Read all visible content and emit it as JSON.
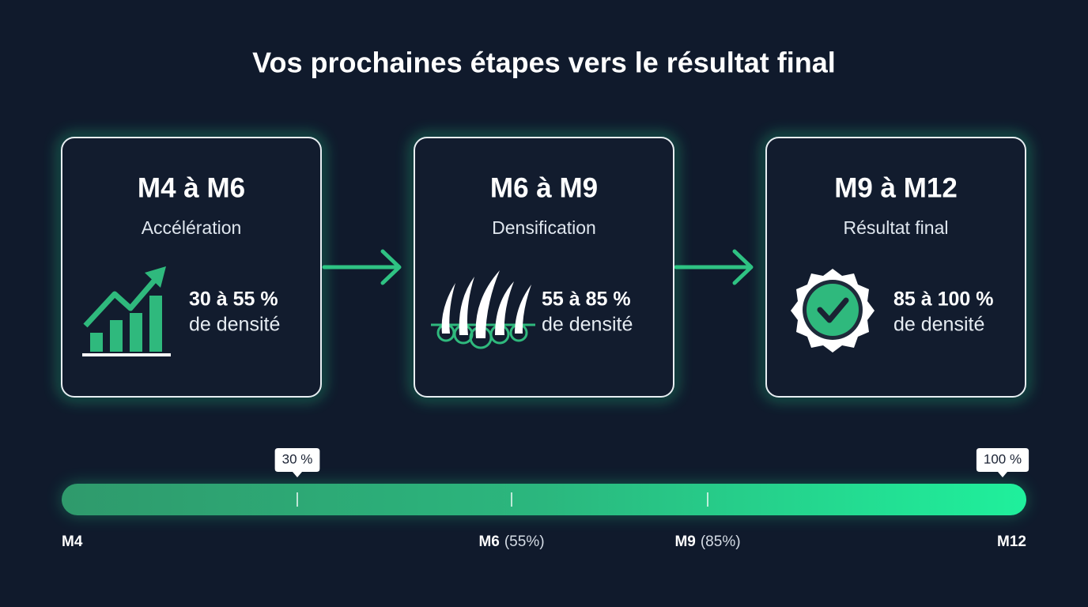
{
  "title": "Vos prochaines étapes vers le résultat final",
  "cards": [
    {
      "range": "M4 à M6",
      "phase": "Accélération",
      "density": "30 à 55 %",
      "density_suffix": "de densité"
    },
    {
      "range": "M6 à M9",
      "phase": "Densification",
      "density": "55 à 85 %",
      "density_suffix": "de densité"
    },
    {
      "range": "M9 à M12",
      "phase": "Résultat final",
      "density": "85 à 100 %",
      "density_suffix": "de densité"
    }
  ],
  "timeline": {
    "callouts": [
      "30 %",
      "100 %"
    ],
    "labels": [
      {
        "label": "M4"
      },
      {
        "label": "M6",
        "detail": "(55%)"
      },
      {
        "label": "M9",
        "detail": "(85%)"
      },
      {
        "label": "M12"
      }
    ]
  }
}
